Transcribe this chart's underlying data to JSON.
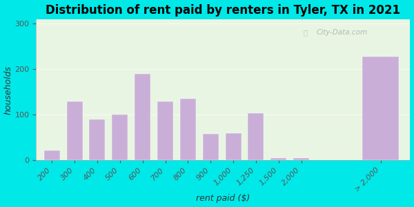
{
  "title": "Distribution of rent paid by renters in Tyler, TX in 2021",
  "xlabel": "rent paid ($)",
  "ylabel": "households",
  "bar_labels": [
    "200",
    "300",
    "400",
    "500",
    "600",
    "700",
    "800",
    "900",
    "1,000",
    "1,250",
    "1,500",
    "2,000",
    "> 2,000"
  ],
  "bar_heights": [
    22,
    130,
    90,
    100,
    190,
    130,
    135,
    58,
    60,
    103,
    5,
    5,
    228
  ],
  "bar_color": "#c9afd8",
  "bar_edge_color": "#c9afd8",
  "ylim": [
    0,
    310
  ],
  "yticks": [
    0,
    100,
    200,
    300
  ],
  "background_outer": "#00e8e8",
  "background_inner_top": "#f5f5f0",
  "background_inner_bottom": "#ddf0dd",
  "title_fontsize": 12,
  "axis_fontsize": 9,
  "tick_fontsize": 8,
  "watermark_text": "City-Data.com"
}
